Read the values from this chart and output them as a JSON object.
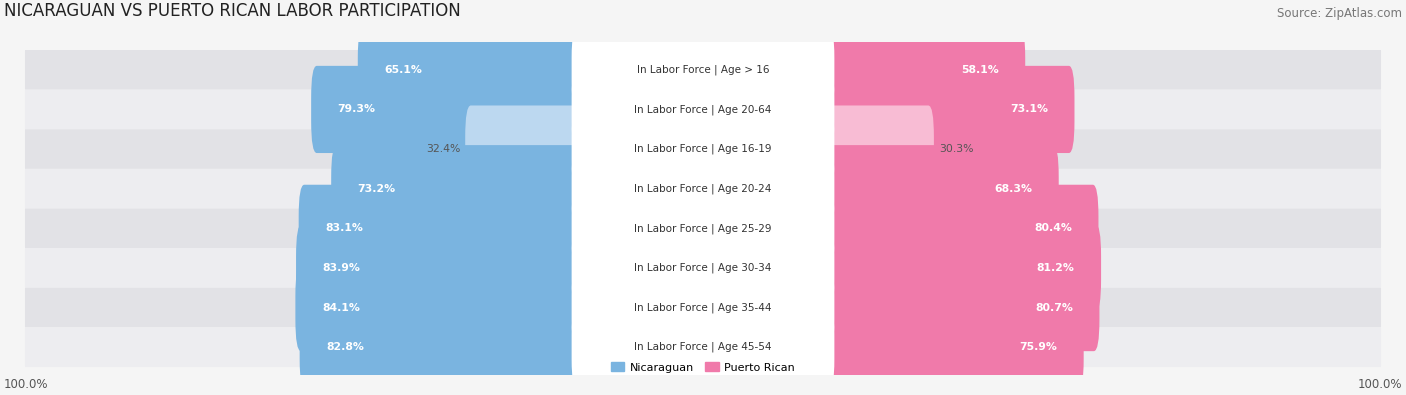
{
  "title": "NICARAGUAN VS PUERTO RICAN LABOR PARTICIPATION",
  "source": "Source: ZipAtlas.com",
  "categories": [
    "In Labor Force | Age > 16",
    "In Labor Force | Age 20-64",
    "In Labor Force | Age 16-19",
    "In Labor Force | Age 20-24",
    "In Labor Force | Age 25-29",
    "In Labor Force | Age 30-34",
    "In Labor Force | Age 35-44",
    "In Labor Force | Age 45-54"
  ],
  "nicaraguan_values": [
    65.1,
    79.3,
    32.4,
    73.2,
    83.1,
    83.9,
    84.1,
    82.8
  ],
  "puerto_rican_values": [
    58.1,
    73.1,
    30.3,
    68.3,
    80.4,
    81.2,
    80.7,
    75.9
  ],
  "nicaraguan_color": "#7ab4e0",
  "nicaraguan_color_light": "#bcd8f0",
  "puerto_rican_color": "#f07aaa",
  "puerto_rican_color_light": "#f8bcd4",
  "row_bg_dark": "#e2e2e6",
  "row_bg_light": "#ededf0",
  "background_color": "#f5f5f5",
  "legend_nicaraguan": "Nicaraguan",
  "legend_puerto_rican": "Puerto Rican",
  "title_fontsize": 12,
  "source_fontsize": 8.5,
  "label_fontsize": 7.5,
  "value_fontsize": 7.8,
  "footer_fontsize": 8.5,
  "low_threshold": 50
}
